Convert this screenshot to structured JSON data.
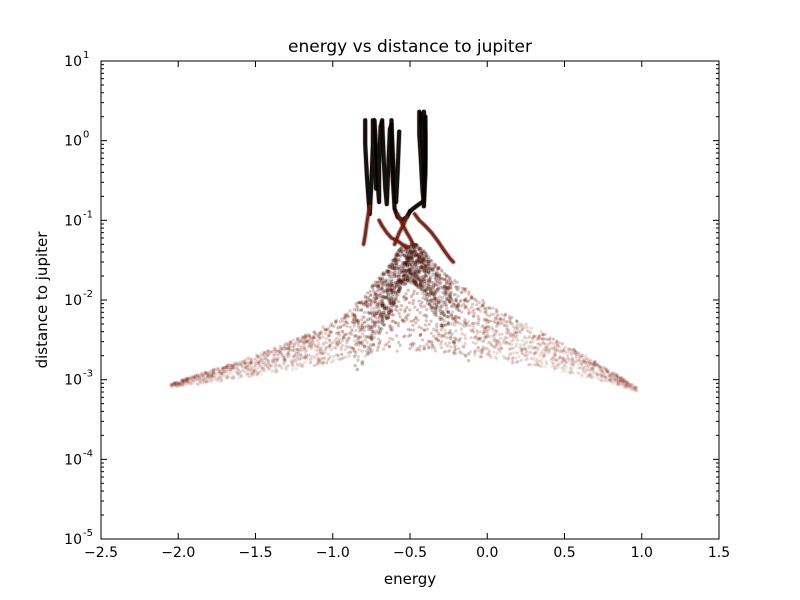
{
  "chart_data": {
    "type": "scatter",
    "title": "energy vs distance to jupiter",
    "xlabel": "energy",
    "ylabel": "distance to jupiter",
    "xlim": [
      -2.5,
      1.5
    ],
    "ylim": [
      1e-05,
      10
    ],
    "yscale": "log",
    "grid": false,
    "xticks": [
      -2.5,
      -2.0,
      -1.5,
      -1.0,
      -0.5,
      0.0,
      0.5,
      1.0,
      1.5
    ],
    "xtick_labels": [
      "−2.5",
      "−2.0",
      "−1.5",
      "−1.0",
      "−0.5",
      "0.0",
      "0.5",
      "1.0",
      "1.5"
    ],
    "yticks": [
      {
        "value": 1e-05,
        "base": "10",
        "exp": "-5"
      },
      {
        "value": 0.0001,
        "base": "10",
        "exp": "-4"
      },
      {
        "value": 0.001,
        "base": "10",
        "exp": "-3"
      },
      {
        "value": 0.01,
        "base": "10",
        "exp": "-2"
      },
      {
        "value": 0.1,
        "base": "10",
        "exp": "-1"
      },
      {
        "value": 1,
        "base": "10",
        "exp": "0"
      },
      {
        "value": 10,
        "base": "10",
        "exp": "1"
      }
    ],
    "colors": {
      "cloud": "#7a1a0a",
      "trace": "#000000",
      "trace_tint": "#6b1c10"
    },
    "series": [
      {
        "style": "diffuse-cloud",
        "envelope_x": [
          -2.05,
          -1.8,
          -1.5,
          -1.2,
          -0.95,
          -0.8,
          -0.65,
          -0.55,
          -0.45,
          -0.3,
          -0.1,
          0.1,
          0.35,
          0.6,
          0.8,
          0.97
        ],
        "envelope_y_top": [
          0.0009,
          0.0013,
          0.002,
          0.0035,
          0.006,
          0.011,
          0.025,
          0.05,
          0.05,
          0.025,
          0.012,
          0.007,
          0.004,
          0.0022,
          0.0013,
          0.0008
        ],
        "envelope_y_bottom": [
          0.0008,
          0.0009,
          0.0011,
          0.0014,
          0.0017,
          0.002,
          0.0022,
          0.0023,
          0.0023,
          0.0022,
          0.002,
          0.0017,
          0.0014,
          0.0011,
          0.0009,
          0.0007
        ],
        "peak_x": -0.5,
        "peak_y": 0.05
      },
      {
        "style": "dense-trajectories",
        "traces": [
          {
            "x": [
              -0.79,
              -0.79,
              -0.78,
              -0.77,
              -0.76,
              -0.75,
              -0.74,
              -0.74,
              -0.73,
              -0.72
            ],
            "y": [
              1.8,
              0.9,
              0.4,
              0.2,
              0.12,
              0.3,
              0.9,
              1.8,
              0.9,
              0.25
            ]
          },
          {
            "x": [
              -0.73,
              -0.72,
              -0.71,
              -0.7,
              -0.7,
              -0.69,
              -0.68
            ],
            "y": [
              1.8,
              0.8,
              0.3,
              0.17,
              0.5,
              1.5,
              1.8
            ]
          },
          {
            "x": [
              -0.68,
              -0.67,
              -0.66,
              -0.65,
              -0.64,
              -0.63,
              -0.62
            ],
            "y": [
              1.7,
              0.6,
              0.25,
              0.16,
              0.5,
              1.4,
              1.6
            ]
          },
          {
            "x": [
              -0.62,
              -0.61,
              -0.6,
              -0.59,
              -0.58,
              -0.57
            ],
            "y": [
              1.6,
              0.6,
              0.28,
              0.17,
              0.4,
              1.3
            ]
          },
          {
            "x": [
              -0.62,
              -0.62,
              -0.61,
              -0.6,
              -0.58,
              -0.55,
              -0.52,
              -0.5
            ],
            "y": [
              1.8,
              0.8,
              0.3,
              0.14,
              0.11,
              0.1,
              0.11,
              0.13
            ]
          },
          {
            "x": [
              -0.44,
              -0.44,
              -0.43,
              -0.42,
              -0.41,
              -0.4,
              -0.4,
              -0.41
            ],
            "y": [
              2.3,
              1.2,
              0.6,
              0.25,
              0.15,
              0.4,
              1.2,
              2.3
            ]
          },
          {
            "x": [
              -0.43,
              -0.42,
              -0.41,
              -0.41,
              -0.4,
              -0.4
            ],
            "y": [
              2.2,
              1.0,
              0.5,
              0.2,
              0.6,
              2.0
            ]
          },
          {
            "x": [
              -0.5,
              -0.48,
              -0.46,
              -0.44,
              -0.42,
              -0.41
            ],
            "y": [
              0.13,
              0.14,
              0.15,
              0.16,
              0.17,
              0.18
            ]
          },
          {
            "x": [
              -0.8,
              -0.79,
              -0.78,
              -0.77,
              -0.76
            ],
            "y": [
              0.05,
              0.065,
              0.09,
              0.12,
              0.15
            ]
          },
          {
            "x": [
              -0.7,
              -0.68,
              -0.65,
              -0.62,
              -0.58,
              -0.55,
              -0.52
            ],
            "y": [
              0.1,
              0.085,
              0.07,
              0.06,
              0.055,
              0.05,
              0.045
            ]
          },
          {
            "x": [
              -0.47,
              -0.44,
              -0.4,
              -0.36,
              -0.32,
              -0.28,
              -0.24,
              -0.22
            ],
            "y": [
              0.12,
              0.1,
              0.085,
              0.07,
              0.055,
              0.042,
              0.033,
              0.03
            ]
          },
          {
            "x": [
              -0.58,
              -0.55,
              -0.52,
              -0.5,
              -0.48
            ],
            "y": [
              0.12,
              0.09,
              0.07,
              0.06,
              0.05
            ]
          },
          {
            "x": [
              -0.6,
              -0.57,
              -0.54,
              -0.52
            ],
            "y": [
              0.05,
              0.07,
              0.09,
              0.11
            ]
          }
        ]
      }
    ]
  }
}
